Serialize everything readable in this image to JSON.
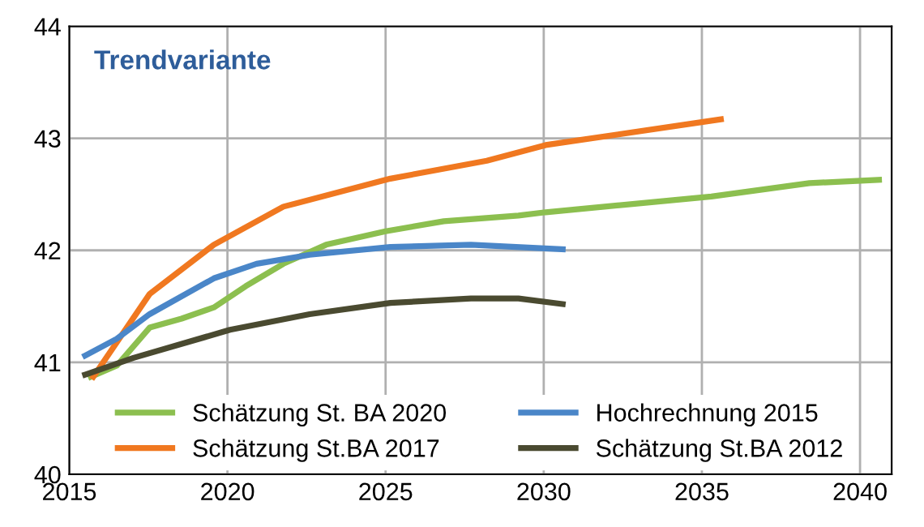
{
  "chart_data": {
    "type": "line",
    "title": "Trendvariante",
    "xlim": [
      2015,
      2041
    ],
    "xticks": [
      2015,
      2020,
      2025,
      2030,
      2035,
      2040
    ],
    "ylim": [
      40,
      44
    ],
    "yticks": [
      40,
      41,
      42,
      43,
      44
    ],
    "grid": true,
    "legend": "bottom",
    "marker": "none",
    "line_style": "solid",
    "series": [
      {
        "name": "Schätzung St. BA 2020",
        "color": "#8cbf4f",
        "x": [
          2015.68,
          2016.5,
          2017.54,
          2018.55,
          2019.57,
          2020.58,
          2021.77,
          2023.12,
          2025,
          2026.84,
          2029.2,
          2030.06,
          2035.3,
          2038.4,
          2040.6
        ],
        "values": [
          40.87,
          40.97,
          41.31,
          41.39,
          41.49,
          41.68,
          41.88,
          42.05,
          42.17,
          42.26,
          42.31,
          42.34,
          42.48,
          42.6,
          42.63
        ]
      },
      {
        "name": "Schätzung St.BA 2017",
        "color": "#f07820",
        "x": [
          2015.76,
          2017.54,
          2019.57,
          2021.77,
          2025.15,
          2028.2,
          2030.06,
          2035.6
        ],
        "values": [
          40.87,
          41.61,
          42.05,
          42.39,
          42.64,
          42.8,
          42.94,
          43.17
        ]
      },
      {
        "name": "Hochrechnung 2015",
        "color": "#4a86c8",
        "x": [
          2015.5,
          2016.5,
          2017.54,
          2019.57,
          2020.92,
          2022.6,
          2025.15,
          2027.7,
          2030.6
        ],
        "values": [
          41.06,
          41.21,
          41.43,
          41.75,
          41.88,
          41.96,
          42.03,
          42.05,
          42.01
        ]
      },
      {
        "name": "Schätzung St.BA 2012",
        "color": "#4a4a30",
        "x": [
          2015.5,
          2017.03,
          2020.08,
          2022.6,
          2025.15,
          2027.7,
          2029.2,
          2030.6
        ],
        "values": [
          40.89,
          41.04,
          41.29,
          41.43,
          41.53,
          41.57,
          41.57,
          41.52
        ]
      }
    ]
  }
}
